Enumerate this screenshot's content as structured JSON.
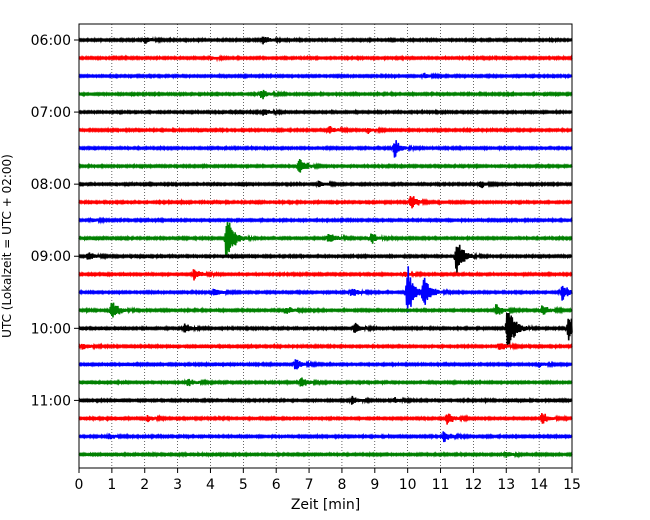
{
  "chart_data": {
    "type": "line",
    "title": "",
    "xlabel": "Zeit  [min]",
    "ylabel": "UTC (Lokalzeit = UTC + 02:00)",
    "xlim": [
      0,
      15
    ],
    "x_ticks": [
      0,
      1,
      2,
      3,
      4,
      5,
      6,
      7,
      8,
      9,
      10,
      11,
      12,
      13,
      14,
      15
    ],
    "y_tick_labels": [
      "06:00",
      "07:00",
      "08:00",
      "09:00",
      "10:00",
      "11:00"
    ],
    "grid": "vertical dotted",
    "trace_colors": [
      "#000000",
      "#ff0000",
      "#0000ff",
      "#008000"
    ],
    "traces": [
      {
        "start": "06:00",
        "events": [
          {
            "t": 2.0,
            "a": 0.35
          },
          {
            "t": 5.6,
            "a": 0.45
          }
        ]
      },
      {
        "start": "06:15",
        "events": [
          {
            "t": 4.0,
            "a": 0.2
          }
        ]
      },
      {
        "start": "06:30",
        "events": [
          {
            "t": 10.5,
            "a": 0.25
          }
        ]
      },
      {
        "start": "06:45",
        "events": [
          {
            "t": 5.55,
            "a": 0.5
          }
        ]
      },
      {
        "start": "07:00",
        "events": [
          {
            "t": 5.6,
            "a": 0.4
          }
        ]
      },
      {
        "start": "07:15",
        "events": [
          {
            "t": 7.6,
            "a": 0.4
          },
          {
            "t": 8.8,
            "a": 0.3
          }
        ]
      },
      {
        "start": "07:30",
        "events": [
          {
            "t": 9.6,
            "a": 0.9
          }
        ]
      },
      {
        "start": "07:45",
        "events": [
          {
            "t": 6.7,
            "a": 0.9
          }
        ]
      },
      {
        "start": "08:00",
        "events": [
          {
            "t": 7.3,
            "a": 0.35
          },
          {
            "t": 12.2,
            "a": 0.4
          }
        ]
      },
      {
        "start": "08:15",
        "events": [
          {
            "t": 10.1,
            "a": 0.7
          }
        ]
      },
      {
        "start": "08:30",
        "events": [
          {
            "t": 0.4,
            "a": 0.2
          }
        ]
      },
      {
        "start": "08:45",
        "events": [
          {
            "t": 4.5,
            "a": 2.6
          },
          {
            "t": 7.6,
            "a": 0.6
          },
          {
            "t": 8.9,
            "a": 0.5
          }
        ]
      },
      {
        "start": "09:00",
        "events": [
          {
            "t": 0.3,
            "a": 0.5
          },
          {
            "t": 11.5,
            "a": 2.0
          }
        ]
      },
      {
        "start": "09:15",
        "events": [
          {
            "t": 3.5,
            "a": 0.6
          },
          {
            "t": 9.9,
            "a": 0.3
          }
        ]
      },
      {
        "start": "09:30",
        "events": [
          {
            "t": 4.1,
            "a": 0.5
          },
          {
            "t": 8.3,
            "a": 0.5
          },
          {
            "t": 10.0,
            "a": 2.8
          },
          {
            "t": 10.5,
            "a": 1.6
          },
          {
            "t": 14.7,
            "a": 0.8
          }
        ]
      },
      {
        "start": "09:45",
        "events": [
          {
            "t": 1.0,
            "a": 1.1
          },
          {
            "t": 6.3,
            "a": 0.4
          },
          {
            "t": 12.7,
            "a": 0.6
          },
          {
            "t": 14.1,
            "a": 0.5
          }
        ]
      },
      {
        "start": "10:00",
        "events": [
          {
            "t": 3.2,
            "a": 0.5
          },
          {
            "t": 8.4,
            "a": 0.6
          },
          {
            "t": 13.05,
            "a": 2.8
          },
          {
            "t": 14.9,
            "a": 1.5
          }
        ]
      },
      {
        "start": "10:15",
        "events": [
          {
            "t": 0.1,
            "a": 0.3
          },
          {
            "t": 12.8,
            "a": 0.5
          }
        ]
      },
      {
        "start": "10:30",
        "events": [
          {
            "t": 6.6,
            "a": 0.6
          },
          {
            "t": 14.0,
            "a": 0.3
          }
        ]
      },
      {
        "start": "10:45",
        "events": [
          {
            "t": 3.3,
            "a": 0.4
          },
          {
            "t": 6.75,
            "a": 0.7
          }
        ]
      },
      {
        "start": "11:00",
        "events": [
          {
            "t": 8.3,
            "a": 0.4
          },
          {
            "t": 9.6,
            "a": 0.3
          }
        ]
      },
      {
        "start": "11:15",
        "events": [
          {
            "t": 2.1,
            "a": 0.3
          },
          {
            "t": 11.2,
            "a": 0.6
          },
          {
            "t": 14.1,
            "a": 0.6
          }
        ]
      },
      {
        "start": "11:30",
        "events": [
          {
            "t": 0.9,
            "a": 0.3
          },
          {
            "t": 11.1,
            "a": 0.6
          }
        ]
      },
      {
        "start": "11:45",
        "events": [
          {
            "t": 13.0,
            "a": 0.3
          }
        ]
      }
    ]
  }
}
